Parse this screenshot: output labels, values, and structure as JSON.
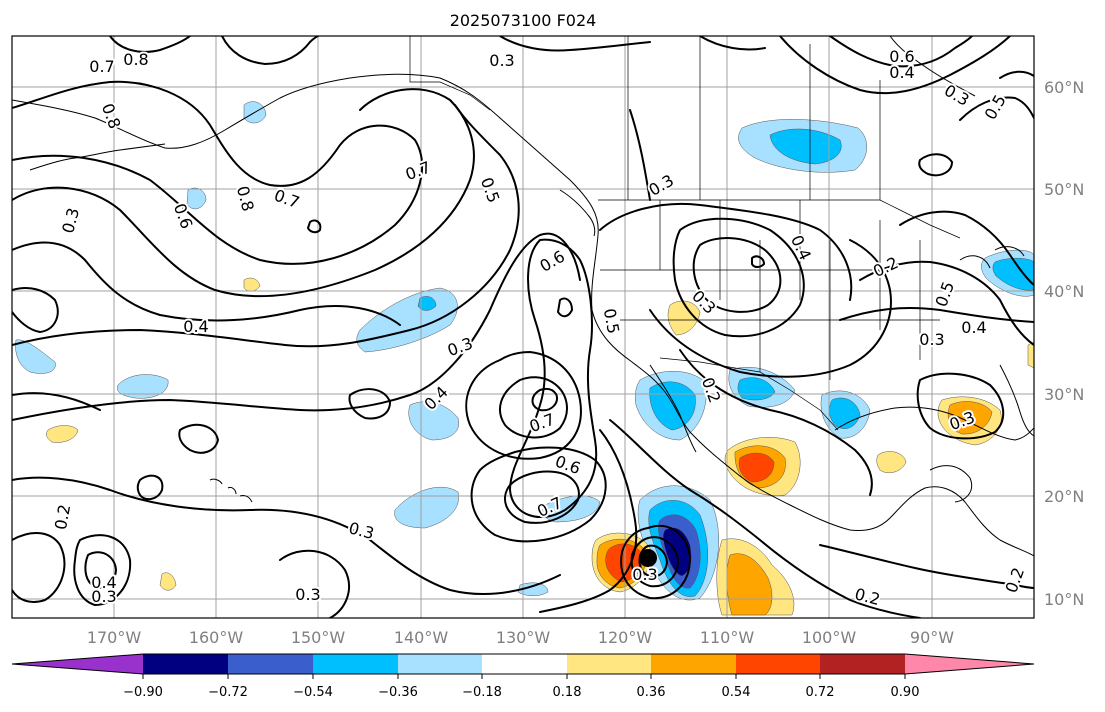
{
  "title": "2025073100 F024",
  "colors": {
    "neg_090": "#000080",
    "neg_072": "#3a5fcd",
    "neg_054": "#00bfff",
    "neg_036": "#a8e0ff",
    "pos_036": "#ffe680",
    "pos_054": "#ffa500",
    "pos_072": "#ff4500",
    "pos_090": "#b22222",
    "under": "#9932cc",
    "over": "#ff88aa"
  },
  "map": {
    "lon_range": [
      -180,
      -80
    ],
    "lat_range": [
      8,
      65
    ],
    "lon_ticks": [
      "170°W",
      "160°W",
      "150°W",
      "140°W",
      "130°W",
      "120°W",
      "110°W",
      "100°W",
      "90°W"
    ],
    "lat_ticks": [
      "10°N",
      "20°N",
      "30°N",
      "40°N",
      "50°N",
      "60°N"
    ],
    "contour_labels": [
      {
        "text": "0.8"
      },
      {
        "text": "0.7"
      },
      {
        "text": "0.8"
      },
      {
        "text": "0.3"
      },
      {
        "text": "0.3"
      },
      {
        "text": "0.6"
      },
      {
        "text": "0.8"
      },
      {
        "text": "0.7"
      },
      {
        "text": "0.7"
      },
      {
        "text": "0.5"
      },
      {
        "text": "0.4"
      },
      {
        "text": "0.3"
      },
      {
        "text": "0.6"
      },
      {
        "text": "0.5"
      },
      {
        "text": "0.4"
      },
      {
        "text": "0.7"
      },
      {
        "text": "0.6"
      },
      {
        "text": "0.7"
      },
      {
        "text": "0.3"
      },
      {
        "text": "0.2"
      },
      {
        "text": "0.4"
      },
      {
        "text": "0.3"
      },
      {
        "text": "0.3"
      },
      {
        "text": "0.3"
      },
      {
        "text": "0.4"
      },
      {
        "text": "0.3"
      },
      {
        "text": "0.3"
      },
      {
        "text": "0.2"
      },
      {
        "text": "0.2"
      },
      {
        "text": "0.5"
      },
      {
        "text": "0.4"
      },
      {
        "text": "0.3"
      },
      {
        "text": "0.3"
      },
      {
        "text": "0.4"
      },
      {
        "text": "0.5"
      },
      {
        "text": "0.3"
      },
      {
        "text": "0.6"
      },
      {
        "text": "0.2"
      },
      {
        "text": "0.2"
      }
    ]
  },
  "colorbar": {
    "ticks": [
      "−0.90",
      "−0.72",
      "−0.54",
      "−0.36",
      "−0.18",
      "0.18",
      "0.36",
      "0.54",
      "0.72",
      "0.90"
    ],
    "bins": [
      {
        "color": "#9932cc"
      },
      {
        "color": "#000080"
      },
      {
        "color": "#3a5fcd"
      },
      {
        "color": "#00bfff"
      },
      {
        "color": "#a8e0ff"
      },
      {
        "color": "#ffffff"
      },
      {
        "color": "#ffe680"
      },
      {
        "color": "#ffa500"
      },
      {
        "color": "#ff4500"
      },
      {
        "color": "#b22222"
      },
      {
        "color": "#ff88aa"
      }
    ]
  }
}
